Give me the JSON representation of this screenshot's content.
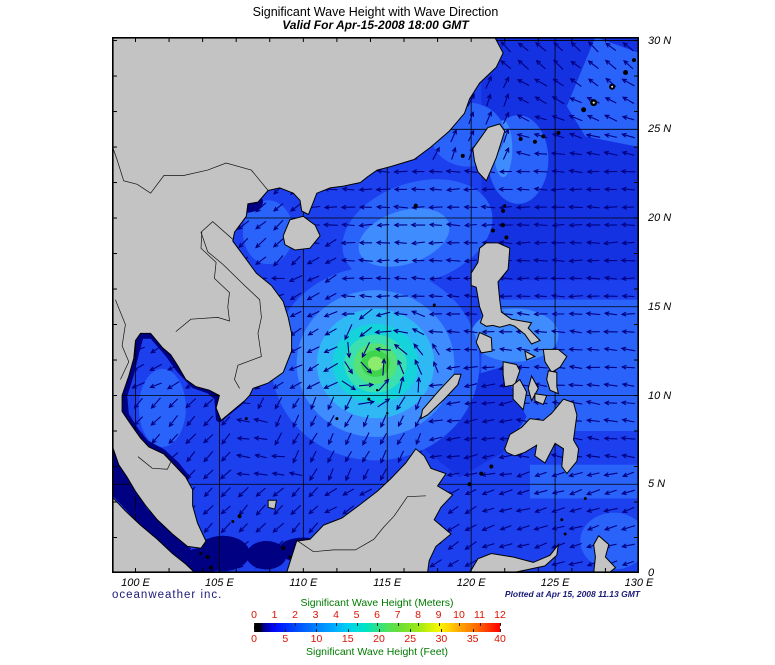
{
  "header": {
    "title": "Significant Wave Height with Wave Direction",
    "subtitle": "Valid For Apr-15-2008 18:00 GMT"
  },
  "footer": {
    "branding": "oceanweather inc.",
    "plotted_at": "Plotted at Apr 15, 2008 11.13 GMT"
  },
  "axes": {
    "lon_labels": [
      {
        "text": "100 E",
        "lon": 100
      },
      {
        "text": "105 E",
        "lon": 105
      },
      {
        "text": "110 E",
        "lon": 110
      },
      {
        "text": "115 E",
        "lon": 115
      },
      {
        "text": "120 E",
        "lon": 120
      },
      {
        "text": "125 E",
        "lon": 125
      },
      {
        "text": "130 E",
        "lon": 130
      }
    ],
    "lat_labels": [
      {
        "text": "30 N",
        "lat": 30
      },
      {
        "text": "25 N",
        "lat": 25
      },
      {
        "text": "20 N",
        "lat": 20
      },
      {
        "text": "15 N",
        "lat": 15
      },
      {
        "text": "10 N",
        "lat": 10
      },
      {
        "text": "5 N",
        "lat": 5
      },
      {
        "text": "0",
        "lat": 0
      }
    ]
  },
  "legend": {
    "meters_title": "Significant Wave Height (Meters)",
    "feet_title": "Significant Wave Height (Feet)",
    "meters_ticks": [
      0,
      1,
      2,
      3,
      4,
      5,
      6,
      7,
      8,
      9,
      10,
      11,
      12
    ],
    "feet_ticks": [
      0,
      5,
      10,
      15,
      20,
      25,
      30,
      35,
      40
    ],
    "title_color": "#007a00",
    "tick_color": "#dd1100",
    "gradient_stops": [
      [
        0,
        "#000000"
      ],
      [
        0.022,
        "#000000"
      ],
      [
        0.04,
        "#00008f"
      ],
      [
        0.083,
        "#0008ff"
      ],
      [
        0.167,
        "#0048ff"
      ],
      [
        0.25,
        "#007fff"
      ],
      [
        0.333,
        "#00b2ff"
      ],
      [
        0.4,
        "#00d8e8"
      ],
      [
        0.458,
        "#00e4c0"
      ],
      [
        0.5,
        "#2ae38c"
      ],
      [
        0.542,
        "#4fe25e"
      ],
      [
        0.583,
        "#66de3d"
      ],
      [
        0.667,
        "#9ce818"
      ],
      [
        0.75,
        "#f8f800"
      ],
      [
        0.792,
        "#ffd400"
      ],
      [
        0.833,
        "#ffaa00"
      ],
      [
        0.875,
        "#ff8400"
      ],
      [
        0.917,
        "#ff5e00"
      ],
      [
        0.958,
        "#ff3000"
      ],
      [
        1,
        "#ff0000"
      ]
    ]
  },
  "chart_data": {
    "type": "heatmap",
    "title": "Significant Wave Height with Wave Direction",
    "valid_time": "Apr-15-2008 18:00 GMT",
    "plotted_time": "Apr 15, 2008 11.13 GMT",
    "region": {
      "lon_min": 98.6,
      "lon_max": 130,
      "lat_min": 0,
      "lat_max": 30.2
    },
    "grid_interval_deg": 5,
    "tick_interval_deg": 2,
    "scale_meters": {
      "min": 0,
      "max": 12
    },
    "scale_feet": {
      "min": 0,
      "max": 40
    },
    "storm": {
      "center_lon": 114.3,
      "center_lat": 11.8,
      "peak_wave_height_m": 5.5,
      "rotation": "counterclockwise",
      "rings": [
        {
          "r": 6.2,
          "color": "light1"
        },
        {
          "r": 4.7,
          "color": "light2"
        },
        {
          "r": 3.5,
          "color": "cyan"
        },
        {
          "r": 2.55,
          "color": "teal"
        },
        {
          "r": 1.85,
          "color": "aqua"
        },
        {
          "r": 1.3,
          "color": "green1"
        },
        {
          "r": 0.85,
          "color": "green2"
        },
        {
          "r": 0.45,
          "color": "green3"
        }
      ]
    },
    "background_wave_height_m": {
      "south_china_sea": 2.0,
      "pacific_north": 1.2,
      "pacific_tropics": 2.0,
      "sheltered_coastal_straits": 0.25
    },
    "map_colors": {
      "ocean_base": "#1c40ee",
      "ocean_dark": "#1532e2",
      "navy": "#000082",
      "light1": "#2a63fa",
      "light2": "#3f8cff",
      "cyan": "#2fb9f4",
      "teal": "#15d3da",
      "aqua": "#3be0b0",
      "green1": "#55e276",
      "green2": "#3ed44c",
      "green3": "#8deb6e",
      "land": "#c3c3c3",
      "coast": "#000000",
      "grid": "#000000",
      "arrow": "#000080"
    }
  }
}
